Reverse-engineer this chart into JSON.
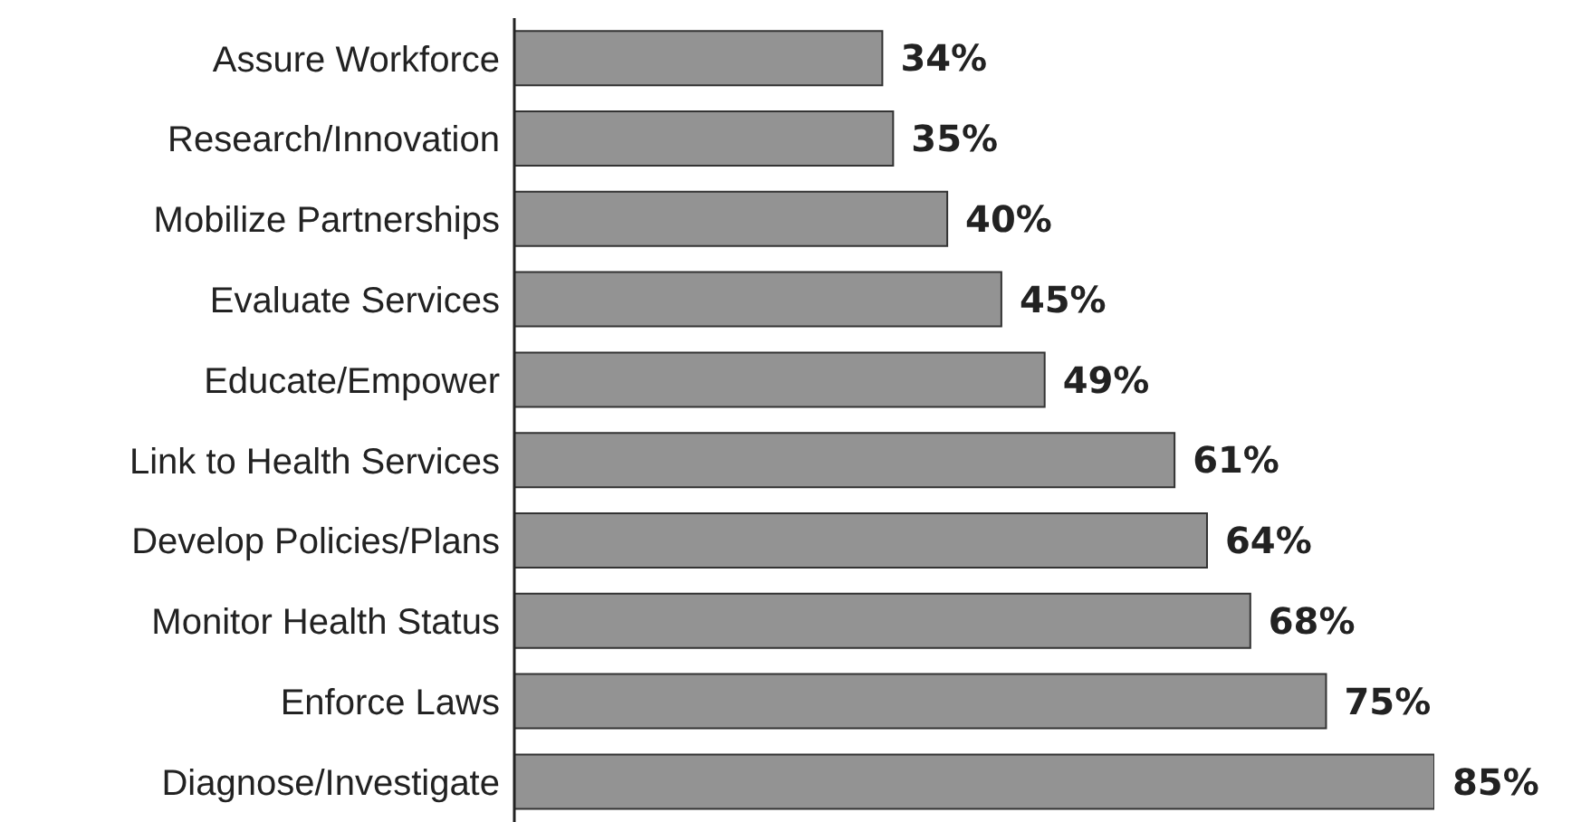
{
  "chart_data": {
    "type": "bar",
    "orientation": "horizontal",
    "categories": [
      "Assure Workforce",
      "Research/Innovation",
      "Mobilize Partnerships",
      "Evaluate Services",
      "Educate/Empower",
      "Link to Health Services",
      "Develop Policies/Plans",
      "Monitor Health Status",
      "Enforce Laws",
      "Diagnose/Investigate"
    ],
    "values": [
      34,
      35,
      40,
      45,
      49,
      61,
      64,
      68,
      75,
      85
    ],
    "value_labels": [
      "34%",
      "35%",
      "40%",
      "45%",
      "49%",
      "61%",
      "64%",
      "68%",
      "75%",
      "85%"
    ],
    "color": "#939393"
  }
}
